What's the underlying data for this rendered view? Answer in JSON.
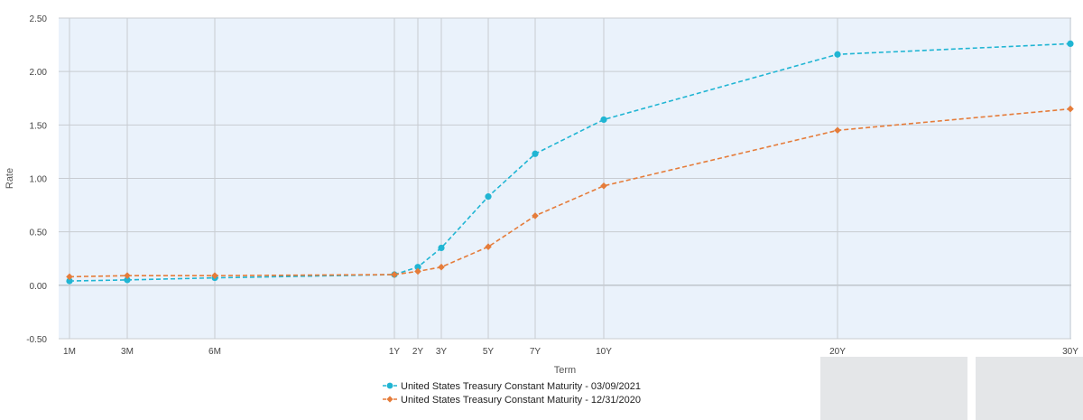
{
  "chart_data": {
    "type": "line",
    "xlabel": "Term",
    "ylabel": "Rate",
    "ylim": [
      -0.5,
      2.5
    ],
    "yticks": [
      "-0.50",
      "0.00",
      "0.50",
      "1.00",
      "1.50",
      "2.00",
      "2.50"
    ],
    "ytick_values": [
      -0.5,
      0,
      0.5,
      1,
      1.5,
      2,
      2.5
    ],
    "x_unit": "years",
    "categories": [
      "1M",
      "3M",
      "6M",
      "1Y",
      "2Y",
      "3Y",
      "5Y",
      "7Y",
      "10Y",
      "20Y",
      "30Y"
    ],
    "x_years": [
      0.0833,
      0.25,
      0.5,
      1,
      2,
      3,
      5,
      7,
      10,
      20,
      30
    ],
    "grid": true,
    "legend_position": "bottom-center",
    "series": [
      {
        "name": "United States Treasury Constant Maturity - 03/09/2021",
        "color": "#20b5d3",
        "marker": "circle",
        "values": [
          0.04,
          0.05,
          0.07,
          0.1,
          0.17,
          0.35,
          0.83,
          1.23,
          1.55,
          2.16,
          2.26
        ]
      },
      {
        "name": "United States Treasury Constant Maturity - 12/31/2020",
        "color": "#e57c3a",
        "marker": "diamond",
        "values": [
          0.08,
          0.09,
          0.09,
          0.1,
          0.13,
          0.17,
          0.36,
          0.65,
          0.93,
          1.45,
          1.65
        ]
      }
    ]
  }
}
